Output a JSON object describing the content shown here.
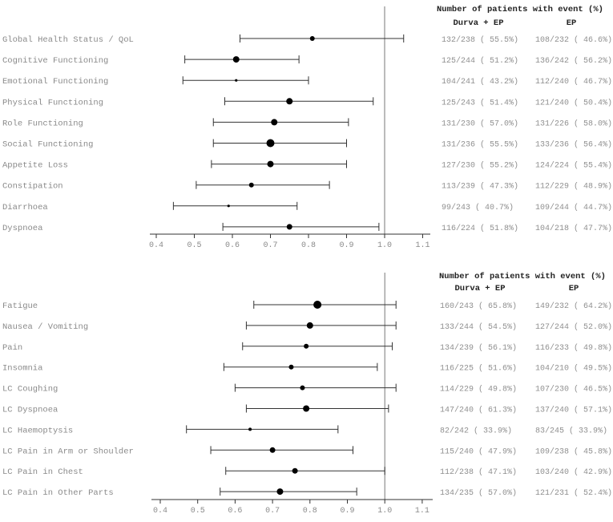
{
  "chart_data": [
    {
      "type": "forest",
      "header": "Number of patients with event (%)",
      "column_headers": [
        "Durva + EP",
        "EP"
      ],
      "xlim": [
        0.35,
        1.12
      ],
      "ticks": [
        "0.4",
        "0.5",
        "0.6",
        "0.7",
        "0.8",
        "0.9",
        "1.0",
        "1.1"
      ],
      "reference_line": 1.0,
      "rows": [
        {
          "label": "Global Health Status / QoL",
          "estimate": 0.81,
          "lower": 0.62,
          "upper": 1.05,
          "durva_ep": "132/238 ( 55.5%)",
          "ep": "108/232 ( 46.6%)"
        },
        {
          "label": "Cognitive Functioning",
          "estimate": 0.61,
          "lower": 0.475,
          "upper": 0.775,
          "durva_ep": "125/244 ( 51.2%)",
          "ep": "136/242 ( 56.2%)"
        },
        {
          "label": "Emotional Functioning",
          "estimate": 0.61,
          "lower": 0.47,
          "upper": 0.8,
          "durva_ep": "104/241 ( 43.2%)",
          "ep": "112/240 ( 46.7%)"
        },
        {
          "label": "Physical Functioning",
          "estimate": 0.75,
          "lower": 0.58,
          "upper": 0.97,
          "durva_ep": "125/243 ( 51.4%)",
          "ep": "121/240 ( 50.4%)"
        },
        {
          "label": "Role Functioning",
          "estimate": 0.71,
          "lower": 0.55,
          "upper": 0.905,
          "durva_ep": "131/230 ( 57.0%)",
          "ep": "131/226 ( 58.0%)"
        },
        {
          "label": "Social Functioning",
          "estimate": 0.7,
          "lower": 0.55,
          "upper": 0.9,
          "durva_ep": "131/236 ( 55.5%)",
          "ep": "133/236 ( 56.4%)"
        },
        {
          "label": "Appetite Loss",
          "estimate": 0.7,
          "lower": 0.545,
          "upper": 0.9,
          "durva_ep": "127/230 ( 55.2%)",
          "ep": "124/224 ( 55.4%)"
        },
        {
          "label": "Constipation",
          "estimate": 0.65,
          "lower": 0.505,
          "upper": 0.855,
          "durva_ep": "113/239 ( 47.3%)",
          "ep": "112/229 ( 48.9%)"
        },
        {
          "label": "Diarrhoea",
          "estimate": 0.59,
          "lower": 0.445,
          "upper": 0.77,
          "durva_ep": "99/243 ( 40.7%)",
          "ep": "109/244 ( 44.7%)"
        },
        {
          "label": "Dyspnoea",
          "estimate": 0.75,
          "lower": 0.575,
          "upper": 0.985,
          "durva_ep": "116/224 ( 51.8%)",
          "ep": "104/218 ( 47.7%)"
        }
      ]
    },
    {
      "type": "forest",
      "header": "Number of patients with event (%)",
      "column_headers": [
        "Durva + EP",
        "EP"
      ],
      "xlim": [
        0.35,
        1.12
      ],
      "ticks": [
        "0.4",
        "0.5",
        "0.6",
        "0.7",
        "0.8",
        "0.9",
        "1.0",
        "1.1"
      ],
      "reference_line": 1.0,
      "rows": [
        {
          "label": "Fatigue",
          "estimate": 0.82,
          "lower": 0.65,
          "upper": 1.03,
          "durva_ep": "160/243 ( 65.8%)",
          "ep": "149/232 ( 64.2%)"
        },
        {
          "label": "Nausea / Vomiting",
          "estimate": 0.8,
          "lower": 0.63,
          "upper": 1.03,
          "durva_ep": "133/244 ( 54.5%)",
          "ep": "127/244 ( 52.0%)"
        },
        {
          "label": "Pain",
          "estimate": 0.79,
          "lower": 0.62,
          "upper": 1.02,
          "durva_ep": "134/239 ( 56.1%)",
          "ep": "116/233 ( 49.8%)"
        },
        {
          "label": "Insomnia",
          "estimate": 0.75,
          "lower": 0.57,
          "upper": 0.98,
          "durva_ep": "116/225 ( 51.6%)",
          "ep": "104/210 ( 49.5%)"
        },
        {
          "label": "LC Coughing",
          "estimate": 0.78,
          "lower": 0.6,
          "upper": 1.03,
          "durva_ep": "114/229 ( 49.8%)",
          "ep": "107/230 ( 46.5%)"
        },
        {
          "label": "LC Dyspnoea",
          "estimate": 0.79,
          "lower": 0.63,
          "upper": 1.01,
          "durva_ep": "147/240 ( 61.3%)",
          "ep": "137/240 ( 57.1%)"
        },
        {
          "label": "LC Haemoptysis",
          "estimate": 0.64,
          "lower": 0.47,
          "upper": 0.875,
          "durva_ep": "82/242 ( 33.9%)",
          "ep": "83/245 ( 33.9%)"
        },
        {
          "label": "LC Pain in Arm or Shoulder",
          "estimate": 0.7,
          "lower": 0.535,
          "upper": 0.915,
          "durva_ep": "115/240 ( 47.9%)",
          "ep": "109/238 ( 45.8%)"
        },
        {
          "label": "LC Pain in Chest",
          "estimate": 0.76,
          "lower": 0.575,
          "upper": 1.0,
          "durva_ep": "112/238 ( 47.1%)",
          "ep": "103/240 ( 42.9%)"
        },
        {
          "label": "LC Pain in Other Parts",
          "estimate": 0.72,
          "lower": 0.56,
          "upper": 0.925,
          "durva_ep": "134/235 ( 57.0%)",
          "ep": "121/231 ( 52.4%)"
        }
      ]
    }
  ]
}
